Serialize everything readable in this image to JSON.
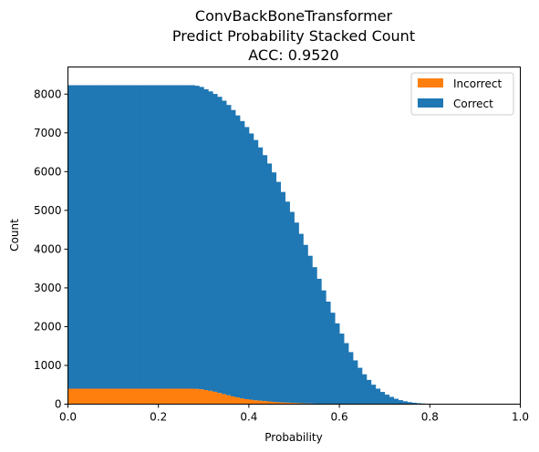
{
  "chart_data": {
    "type": "bar",
    "subtype": "stacked histogram",
    "title_lines": [
      "ConvBackBoneTransformer",
      "Predict Probability Stacked Count",
      "ACC: 0.9520"
    ],
    "xlabel": "Probability",
    "ylabel": "Count",
    "xlim": [
      0.0,
      1.0
    ],
    "ylim": [
      0,
      8700
    ],
    "x_ticks": [
      0.0,
      0.2,
      0.4,
      0.6,
      0.8,
      1.0
    ],
    "x_tick_labels": [
      "0.0",
      "0.2",
      "0.4",
      "0.6",
      "0.8",
      "1.0"
    ],
    "y_ticks": [
      0,
      1000,
      2000,
      3000,
      4000,
      5000,
      6000,
      7000,
      8000
    ],
    "y_tick_labels": [
      "0",
      "1000",
      "2000",
      "3000",
      "4000",
      "5000",
      "6000",
      "7000",
      "8000"
    ],
    "grid": false,
    "legend_position": "top-right",
    "bin_width": 0.01,
    "x": [
      0.0,
      0.01,
      0.02,
      0.03,
      0.04,
      0.05,
      0.06,
      0.07,
      0.08,
      0.09,
      0.1,
      0.11,
      0.12,
      0.13,
      0.14,
      0.15,
      0.16,
      0.17,
      0.18,
      0.19,
      0.2,
      0.21,
      0.22,
      0.23,
      0.24,
      0.25,
      0.26,
      0.27,
      0.28,
      0.29,
      0.3,
      0.31,
      0.32,
      0.33,
      0.34,
      0.35,
      0.36,
      0.37,
      0.38,
      0.39,
      0.4,
      0.41,
      0.42,
      0.43,
      0.44,
      0.45,
      0.46,
      0.47,
      0.48,
      0.49,
      0.5,
      0.51,
      0.52,
      0.53,
      0.54,
      0.55,
      0.56,
      0.57,
      0.58,
      0.59,
      0.6,
      0.61,
      0.62,
      0.63,
      0.64,
      0.65,
      0.66,
      0.67,
      0.68,
      0.69,
      0.7,
      0.71,
      0.72,
      0.73,
      0.74,
      0.75,
      0.76,
      0.77,
      0.78,
      0.79,
      0.8,
      0.81,
      0.82,
      0.83,
      0.84,
      0.85,
      0.86,
      0.87,
      0.88,
      0.89,
      0.9
    ],
    "series": [
      {
        "name": "Incorrect",
        "color": "#ff7f0e",
        "values": [
          400,
          400,
          400,
          400,
          400,
          400,
          400,
          400,
          400,
          400,
          400,
          400,
          400,
          400,
          400,
          400,
          400,
          400,
          400,
          400,
          400,
          400,
          400,
          400,
          400,
          400,
          400,
          400,
          395,
          385,
          365,
          345,
          320,
          290,
          260,
          230,
          200,
          175,
          150,
          130,
          115,
          100,
          90,
          80,
          70,
          60,
          50,
          45,
          40,
          35,
          30,
          25,
          20,
          18,
          15,
          12,
          10,
          8,
          6,
          5,
          4,
          3,
          2,
          2,
          1,
          1,
          1,
          0,
          0,
          0,
          0,
          0,
          0,
          0,
          0,
          0,
          0,
          0,
          0,
          0,
          0,
          0,
          0,
          0,
          0,
          0,
          0,
          0,
          0,
          0,
          0
        ]
      },
      {
        "name": "Correct",
        "color": "#1f77b4",
        "values": [
          7830,
          7830,
          7830,
          7830,
          7830,
          7830,
          7830,
          7830,
          7830,
          7830,
          7830,
          7830,
          7830,
          7830,
          7830,
          7830,
          7830,
          7830,
          7830,
          7830,
          7830,
          7830,
          7830,
          7830,
          7830,
          7830,
          7830,
          7830,
          7820,
          7800,
          7760,
          7725,
          7685,
          7640,
          7570,
          7490,
          7390,
          7275,
          7155,
          7020,
          6870,
          6715,
          6535,
          6345,
          6140,
          5920,
          5685,
          5430,
          5185,
          4925,
          4655,
          4370,
          4090,
          3810,
          3520,
          3223,
          2925,
          2637,
          2354,
          2080,
          1817,
          1572,
          1341,
          1128,
          938,
          770,
          625,
          502,
          400,
          315,
          245,
          188,
          140,
          104,
          75,
          53,
          37,
          25,
          17,
          11,
          7,
          4,
          3,
          2,
          1,
          1,
          1,
          0,
          0,
          0,
          0
        ]
      }
    ]
  }
}
